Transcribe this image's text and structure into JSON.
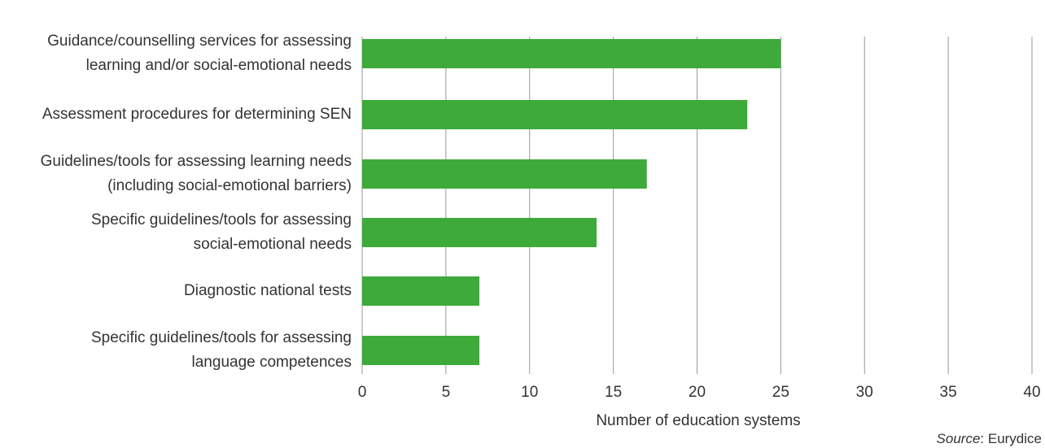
{
  "chart_data": {
    "type": "bar",
    "orientation": "horizontal",
    "categories": [
      [
        "Guidance/counselling services for assessing",
        "learning and/or social-emotional needs"
      ],
      [
        "Assessment procedures for determining SEN"
      ],
      [
        "Guidelines/tools for assessing learning needs",
        "(including social-emotional barriers)"
      ],
      [
        "Specific guidelines/tools for assessing",
        "social-emotional needs"
      ],
      [
        "Diagnostic national tests"
      ],
      [
        "Specific guidelines/tools for assessing",
        "language competences"
      ]
    ],
    "values": [
      25,
      23,
      17,
      14,
      7,
      7
    ],
    "color": "#3daa3a",
    "xlim": [
      0,
      40
    ],
    "xticks": [
      0,
      5,
      10,
      15,
      20,
      25,
      30,
      35,
      40
    ],
    "x_label": "Number of education systems",
    "grid": true,
    "source": [
      "Source",
      ": Eurydice"
    ]
  }
}
